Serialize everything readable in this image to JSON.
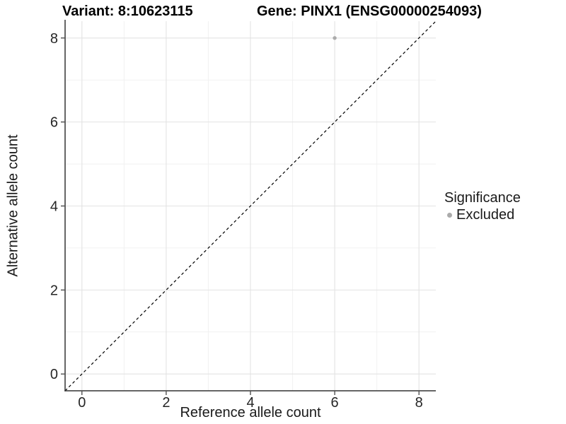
{
  "titles": {
    "variant": "Variant: 8:10623115",
    "gene": "Gene: PINX1 (ENSG00000254093)"
  },
  "legend": {
    "title": "Significance",
    "items": [
      {
        "label": "Excluded",
        "color": "#ababab"
      }
    ]
  },
  "colors": {
    "background": "#ffffff",
    "point": "#ababab",
    "grid_major": "#e3e3e3",
    "grid_minor": "#f1f1f1",
    "axis_line": "#333333",
    "tick_text": "#262626",
    "reference_line": "#000000"
  },
  "chart_data": {
    "type": "scatter",
    "title_left": "Variant: 8:10623115",
    "title_right": "Gene: PINX1 (ENSG00000254093)",
    "xlabel": "Reference allele count",
    "ylabel": "Alternative allele count",
    "xlim": [
      -0.4,
      8.4
    ],
    "ylim": [
      -0.4,
      8.4
    ],
    "x_ticks": [
      0,
      2,
      4,
      6,
      8
    ],
    "y_ticks": [
      0,
      2,
      4,
      6,
      8
    ],
    "x_minor_gridlines": [
      1,
      3,
      5,
      7
    ],
    "y_minor_gridlines": [
      1,
      3,
      5,
      7
    ],
    "grid": "major+minor",
    "legend_position": "right",
    "series": [
      {
        "name": "Excluded",
        "color": "#ababab",
        "marker": "circle",
        "points": [
          {
            "x": 6,
            "y": 8
          }
        ]
      }
    ],
    "reference_line": {
      "type": "identity y=x",
      "style": "dashed",
      "color": "#000000",
      "from": [
        -0.4,
        -0.4
      ],
      "to": [
        8.4,
        8.4
      ]
    }
  }
}
